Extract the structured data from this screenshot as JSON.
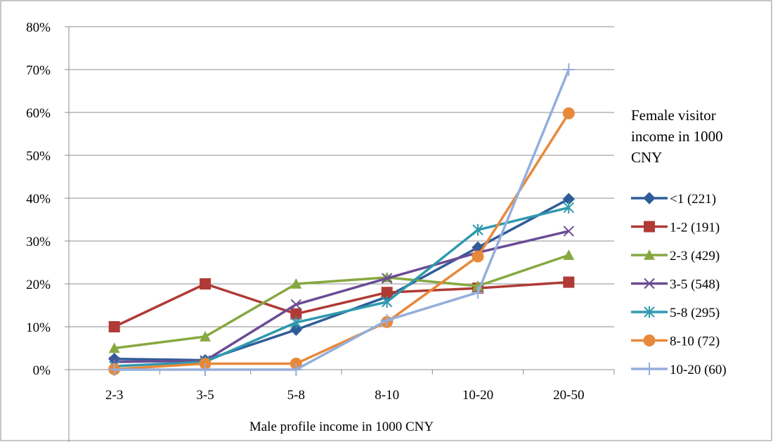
{
  "chart_data": {
    "type": "line",
    "title": "",
    "xlabel": "Male profile income in 1000 CNY",
    "ylabel": "",
    "categories": [
      "2-3",
      "3-5",
      "5-8",
      "8-10",
      "10-20",
      "20-50"
    ],
    "ylim": [
      0,
      80
    ],
    "y_ticks": [
      "0%",
      "10%",
      "20%",
      "30%",
      "40%",
      "50%",
      "60%",
      "70%",
      "80%"
    ],
    "y_tick_values": [
      0,
      10,
      20,
      30,
      40,
      50,
      60,
      70,
      80
    ],
    "grid": true,
    "legend_position": "right",
    "legend_title_lines": [
      "Female visitor",
      "income in 1000",
      "CNY"
    ],
    "series": [
      {
        "name": "<1 (221)",
        "color": "#2E5C98",
        "marker": "diamond",
        "values": [
          2.5,
          2.2,
          9.3,
          17.0,
          28.5,
          39.8
        ]
      },
      {
        "name": "1-2 (191)",
        "color": "#B03A35",
        "marker": "square",
        "values": [
          10.0,
          20.0,
          13.0,
          18.0,
          19.0,
          20.4
        ]
      },
      {
        "name": "2-3 (429)",
        "color": "#87A840",
        "marker": "triangle",
        "values": [
          5.0,
          7.7,
          20.0,
          21.5,
          19.5,
          26.7
        ]
      },
      {
        "name": "3-5 (548)",
        "color": "#6A4C94",
        "marker": "x",
        "values": [
          1.8,
          2.1,
          15.2,
          21.3,
          27.3,
          32.3
        ]
      },
      {
        "name": "5-8 (295)",
        "color": "#2F99AE",
        "marker": "star",
        "values": [
          0.8,
          1.8,
          11.0,
          15.8,
          32.6,
          37.8
        ]
      },
      {
        "name": "8-10 (72)",
        "color": "#E8883A",
        "marker": "circle",
        "values": [
          0.1,
          1.4,
          1.4,
          11.1,
          26.4,
          59.8
        ]
      },
      {
        "name": "10-20 (60)",
        "color": "#94AEDB",
        "marker": "plus",
        "values": [
          0.0,
          0.0,
          0.0,
          11.5,
          18.0,
          70.0
        ]
      }
    ]
  }
}
